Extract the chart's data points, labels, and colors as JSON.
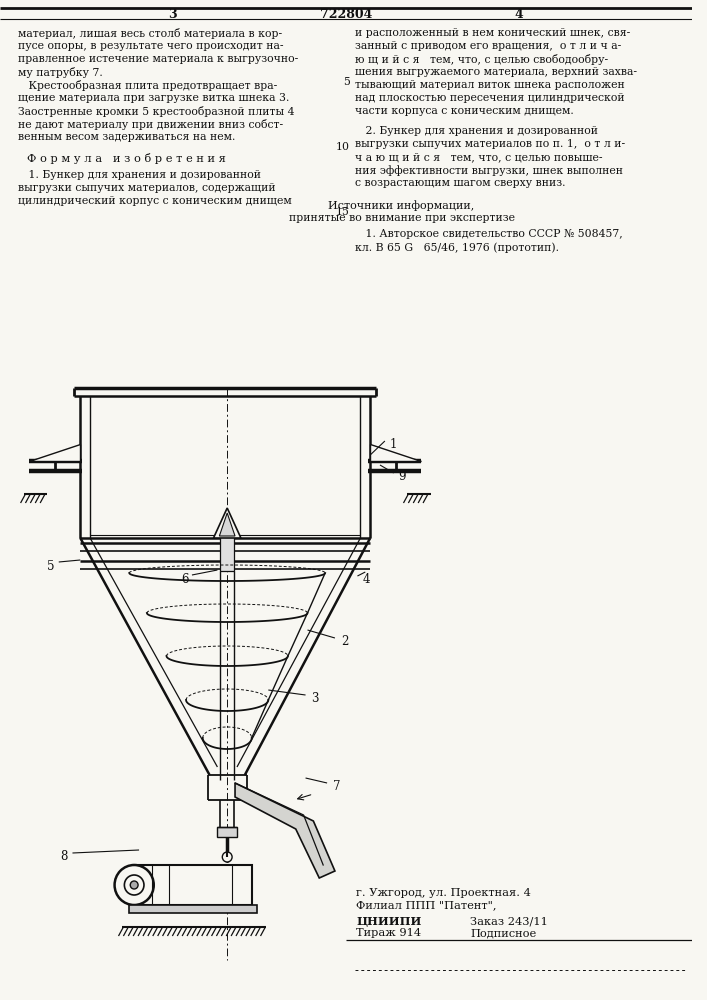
{
  "bg": "#f8f7f2",
  "lc": "#111111",
  "tc": "#111111",
  "page_left": "3",
  "patent": "722804",
  "page_right": "4",
  "col1": [
    "материал, лишая весь столб материала в кор-",
    "пусе опоры, в результате чего происходит на-",
    "правленное истечение материала к выгрузочно-",
    "му патрубку 7.",
    "   Крестообразная плита предотвращает вра-",
    "щение материала при загрузке витка шнека 3.",
    "Заостренные кромки 5 крестообразной плиты 4",
    "не дают материалу при движении вниз собст-",
    "венным весом задерживаться на нем."
  ],
  "formula_hdr": "Ф о р м у л а   и з о б р е т е н и я",
  "formula": [
    "   1. Бункер для хранения и дозированной",
    "выгрузки сыпучих материалов, содержащий",
    "цилиндрический корпус с коническим днищем"
  ],
  "col2a": [
    "и расположенный в нем конический шнек, свя-",
    "занный с приводом его вращения,  о т л и ч а-",
    "ю щ и й с я   тем, что, с целью свободообру-",
    "шения выгружаемого материала, верхний захва-",
    "тывающий материал виток шнека расположен",
    "над плоскостью пересечения цилиндрической",
    "части корпуса с коническим днищем."
  ],
  "col2b": [
    "   2. Бункер для хранения и дозированной",
    "выгрузки сыпучих материалов по п. 1,  о т л и-",
    "ч а ю щ и й с я   тем, что, с целью повыше-",
    "ния эффективности выгрузки, шнек выполнен",
    "с возрастающим шагом сверху вниз."
  ],
  "src_hdr": "Источники информации,",
  "src_sub": "принятые во внимание при экспертизе",
  "src1a": "   1. Авторское свидетельство СССР № 508457,",
  "src1b": "кл. В 65 G   65/46, 1976 (прототип).",
  "ft1": "ЦНИИПИ",
  "ft2": "Тираж 914",
  "ft3": "Заказ 243/11",
  "ft4": "Подписное",
  "ft5": "Филиал ППП \"Патент\",",
  "ft6": "г. Ужгород, ул. Проектная. 4"
}
